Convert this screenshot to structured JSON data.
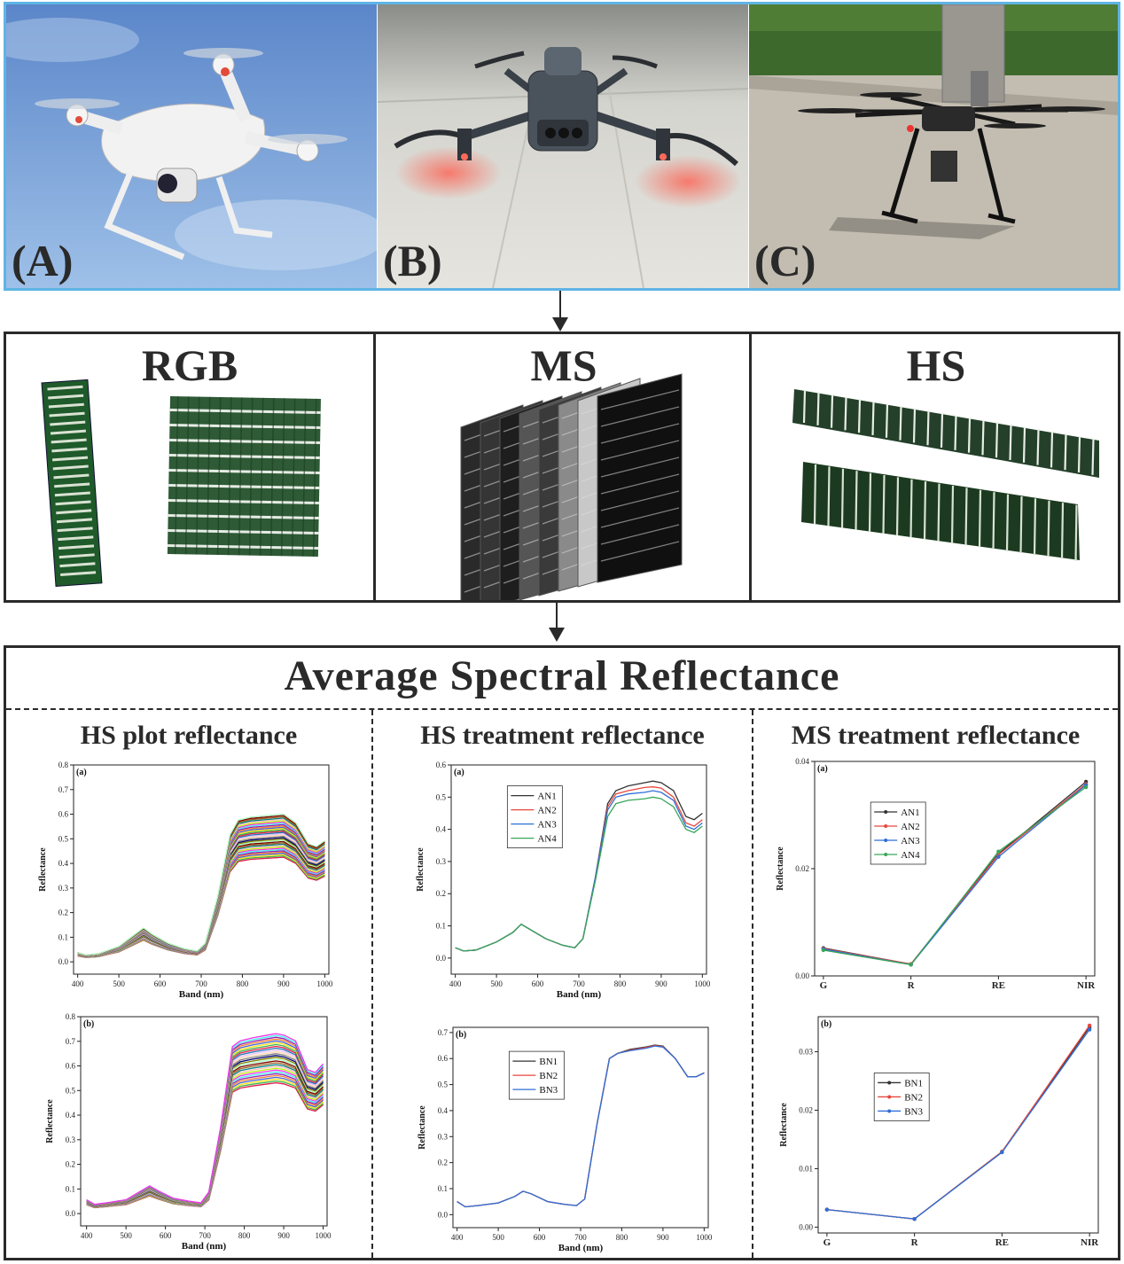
{
  "photos": [
    {
      "label": "(A)",
      "subject": "drone-rgb",
      "sky": "#8fb3e0"
    },
    {
      "label": "(B)",
      "subject": "drone-ms",
      "floor": "#dcdcd6"
    },
    {
      "label": "(C)",
      "subject": "drone-hs",
      "ground": "#b9b4aa"
    }
  ],
  "imagery": {
    "rgb_title": "RGB",
    "ms_title": "MS",
    "hs_title": "HS"
  },
  "reflectance": {
    "title": "Average  Spectral Reflectance",
    "columns": [
      {
        "title": "HS plot reflectance"
      },
      {
        "title": "HS treatment reflectance"
      },
      {
        "title": "MS treatment reflectance"
      }
    ]
  },
  "chart_data": [
    {
      "id": "hs-plot-a",
      "type": "line",
      "panel_label": "(a)",
      "xlabel": "Band (nm)",
      "ylabel": "Reflectance",
      "xlim": [
        390,
        1010
      ],
      "ylim": [
        -0.05,
        0.8
      ],
      "xticks": [
        400,
        500,
        600,
        700,
        800,
        900,
        1000
      ],
      "yticks": [
        0.0,
        0.1,
        0.2,
        0.3,
        0.4,
        0.5,
        0.6,
        0.7,
        0.8
      ],
      "ytick_labels": [
        "0.0",
        "0.1",
        "0.2",
        "0.3",
        "0.4",
        "0.5",
        "0.6",
        "0.7",
        "0.8"
      ],
      "x": [
        400,
        420,
        450,
        500,
        540,
        560,
        580,
        620,
        660,
        690,
        710,
        740,
        770,
        790,
        820,
        860,
        900,
        930,
        960,
        980,
        1000
      ],
      "template": [
        0.03,
        0.022,
        0.026,
        0.05,
        0.09,
        0.11,
        0.09,
        0.06,
        0.042,
        0.035,
        0.06,
        0.22,
        0.43,
        0.48,
        0.49,
        0.495,
        0.5,
        0.47,
        0.4,
        0.39,
        0.41
      ],
      "bundle_range": [
        0.85,
        1.2
      ],
      "bundle_count": 34
    },
    {
      "id": "hs-plot-b",
      "type": "line",
      "panel_label": "(b)",
      "xlabel": "Band (nm)",
      "ylabel": "Reflectance",
      "xlim": [
        385,
        1010
      ],
      "ylim": [
        -0.05,
        0.8
      ],
      "xticks": [
        400,
        500,
        600,
        700,
        800,
        900,
        1000
      ],
      "yticks": [
        0.0,
        0.1,
        0.2,
        0.3,
        0.4,
        0.5,
        0.6,
        0.7,
        0.8
      ],
      "ytick_labels": [
        "0.0",
        "0.1",
        "0.2",
        "0.3",
        "0.4",
        "0.5",
        "0.6",
        "0.7",
        "0.8"
      ],
      "x": [
        400,
        420,
        450,
        500,
        540,
        560,
        580,
        620,
        660,
        690,
        710,
        740,
        770,
        790,
        820,
        860,
        880,
        900,
        930,
        960,
        980,
        1000
      ],
      "template": [
        0.045,
        0.03,
        0.035,
        0.045,
        0.075,
        0.09,
        0.075,
        0.05,
        0.04,
        0.035,
        0.07,
        0.3,
        0.58,
        0.6,
        0.61,
        0.62,
        0.625,
        0.62,
        0.6,
        0.5,
        0.49,
        0.52
      ],
      "bundle_range": [
        0.85,
        1.17
      ],
      "bundle_count": 28
    },
    {
      "id": "hs-treat-a",
      "type": "line",
      "panel_label": "(a)",
      "xlabel": "Band (nm)",
      "ylabel": "Reflectance",
      "xlim": [
        390,
        1010
      ],
      "ylim": [
        -0.05,
        0.6
      ],
      "xticks": [
        400,
        500,
        600,
        700,
        800,
        900,
        1000
      ],
      "yticks": [
        0.0,
        0.1,
        0.2,
        0.3,
        0.4,
        0.5,
        0.6
      ],
      "ytick_labels": [
        "0.0",
        "0.1",
        "0.2",
        "0.3",
        "0.4",
        "0.5",
        "0.6"
      ],
      "x": [
        400,
        420,
        450,
        500,
        540,
        560,
        580,
        620,
        660,
        690,
        710,
        740,
        770,
        790,
        820,
        860,
        880,
        900,
        930,
        960,
        980,
        1000
      ],
      "series": [
        {
          "name": "AN1",
          "color": "#333333",
          "values": [
            0.032,
            0.022,
            0.025,
            0.05,
            0.08,
            0.105,
            0.09,
            0.06,
            0.04,
            0.032,
            0.06,
            0.25,
            0.48,
            0.52,
            0.535,
            0.545,
            0.55,
            0.545,
            0.52,
            0.44,
            0.43,
            0.45
          ]
        },
        {
          "name": "AN2",
          "color": "#e8473e",
          "values": [
            0.032,
            0.022,
            0.025,
            0.05,
            0.08,
            0.105,
            0.09,
            0.06,
            0.04,
            0.032,
            0.06,
            0.25,
            0.47,
            0.51,
            0.52,
            0.53,
            0.532,
            0.528,
            0.5,
            0.42,
            0.41,
            0.43
          ]
        },
        {
          "name": "AN3",
          "color": "#2f6fd6",
          "values": [
            0.032,
            0.022,
            0.025,
            0.05,
            0.08,
            0.105,
            0.09,
            0.06,
            0.04,
            0.032,
            0.06,
            0.25,
            0.46,
            0.5,
            0.51,
            0.515,
            0.52,
            0.515,
            0.49,
            0.41,
            0.4,
            0.42
          ]
        },
        {
          "name": "AN4",
          "color": "#3aa65a",
          "values": [
            0.032,
            0.022,
            0.025,
            0.05,
            0.08,
            0.105,
            0.09,
            0.06,
            0.04,
            0.032,
            0.06,
            0.24,
            0.44,
            0.48,
            0.49,
            0.495,
            0.5,
            0.495,
            0.47,
            0.4,
            0.39,
            0.41
          ]
        }
      ]
    },
    {
      "id": "hs-treat-b",
      "type": "line",
      "panel_label": "(b)",
      "xlabel": "Band (nm)",
      "ylabel": "Reflectance",
      "xlim": [
        390,
        1010
      ],
      "ylim": [
        -0.05,
        0.72
      ],
      "xticks": [
        400,
        500,
        600,
        700,
        800,
        900,
        1000
      ],
      "yticks": [
        0.0,
        0.1,
        0.2,
        0.3,
        0.4,
        0.5,
        0.6,
        0.7
      ],
      "ytick_labels": [
        "0.0",
        "0.1",
        "0.2",
        "0.3",
        "0.4",
        "0.5",
        "0.6",
        "0.7"
      ],
      "x": [
        400,
        420,
        450,
        500,
        540,
        560,
        580,
        620,
        660,
        690,
        710,
        740,
        770,
        790,
        820,
        860,
        880,
        900,
        930,
        960,
        980,
        1000
      ],
      "series": [
        {
          "name": "BN1",
          "color": "#333333",
          "values": [
            0.05,
            0.03,
            0.035,
            0.045,
            0.07,
            0.09,
            0.08,
            0.05,
            0.04,
            0.035,
            0.06,
            0.35,
            0.6,
            0.62,
            0.635,
            0.645,
            0.652,
            0.648,
            0.6,
            0.53,
            0.53,
            0.545
          ]
        },
        {
          "name": "BN2",
          "color": "#e8473e",
          "values": [
            0.05,
            0.03,
            0.035,
            0.045,
            0.07,
            0.09,
            0.08,
            0.05,
            0.04,
            0.035,
            0.06,
            0.35,
            0.6,
            0.62,
            0.632,
            0.643,
            0.65,
            0.646,
            0.6,
            0.53,
            0.53,
            0.545
          ]
        },
        {
          "name": "BN3",
          "color": "#2f6fd6",
          "values": [
            0.05,
            0.03,
            0.035,
            0.045,
            0.07,
            0.09,
            0.08,
            0.05,
            0.04,
            0.035,
            0.06,
            0.35,
            0.6,
            0.62,
            0.63,
            0.64,
            0.648,
            0.644,
            0.6,
            0.53,
            0.53,
            0.545
          ]
        }
      ]
    },
    {
      "id": "ms-treat-a",
      "type": "line",
      "panel_label": "(a)",
      "xlabel": "",
      "ylabel": "Reflectance",
      "categories": [
        "G",
        "R",
        "RE",
        "NIR"
      ],
      "ylim": [
        0.0,
        0.04
      ],
      "yticks": [
        0.0,
        0.02,
        0.04
      ],
      "ytick_labels": [
        "0.00",
        "0.02",
        "0.04"
      ],
      "series": [
        {
          "name": "AN1",
          "color": "#333333",
          "values": [
            0.0052,
            0.0022,
            0.0228,
            0.0362
          ]
        },
        {
          "name": "AN2",
          "color": "#e8473e",
          "values": [
            0.0051,
            0.0022,
            0.0226,
            0.0358
          ]
        },
        {
          "name": "AN3",
          "color": "#2f6fd6",
          "values": [
            0.005,
            0.0021,
            0.0222,
            0.0356
          ]
        },
        {
          "name": "AN4",
          "color": "#3aa65a",
          "values": [
            0.0048,
            0.0021,
            0.0232,
            0.0352
          ]
        }
      ]
    },
    {
      "id": "ms-treat-b",
      "type": "line",
      "panel_label": "(b)",
      "xlabel": "",
      "ylabel": "Reflectance",
      "categories": [
        "G",
        "R",
        "RE",
        "NIR"
      ],
      "ylim": [
        -0.001,
        0.036
      ],
      "yticks": [
        0.0,
        0.01,
        0.02,
        0.03
      ],
      "ytick_labels": [
        "0.00",
        "0.01",
        "0.02",
        "0.03"
      ],
      "series": [
        {
          "name": "BN1",
          "color": "#333333",
          "values": [
            0.003,
            0.0014,
            0.0129,
            0.0342
          ]
        },
        {
          "name": "BN2",
          "color": "#e8473e",
          "values": [
            0.003,
            0.0014,
            0.0129,
            0.0345
          ]
        },
        {
          "name": "BN3",
          "color": "#2f6fd6",
          "values": [
            0.003,
            0.0014,
            0.0128,
            0.0338
          ]
        }
      ]
    }
  ]
}
